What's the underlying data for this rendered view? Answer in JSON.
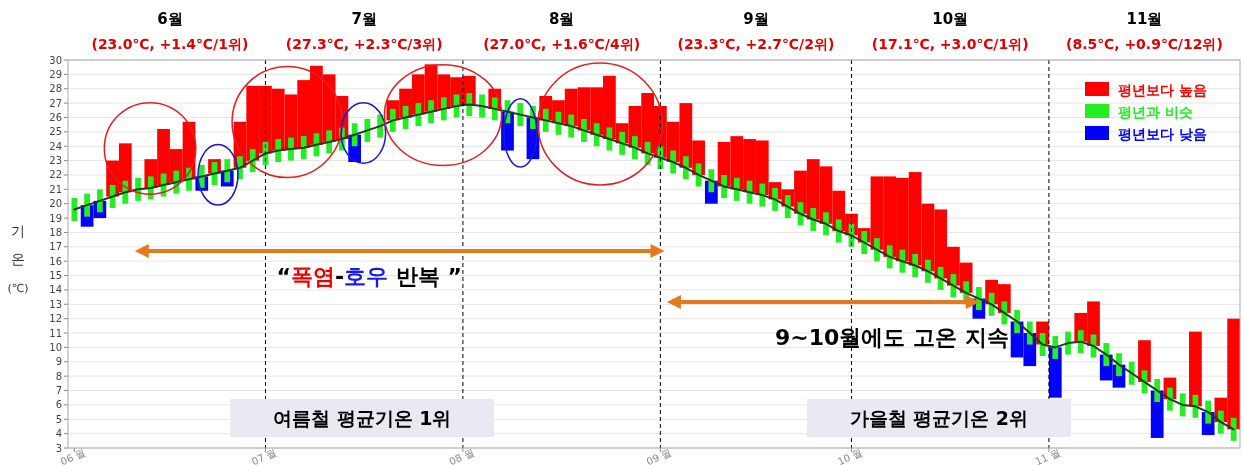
{
  "chart_data": {
    "type": "bar",
    "x": [
      "--06-01",
      "--06-03",
      "--06-05",
      "--06-07",
      "--06-09",
      "--06-11",
      "--06-13",
      "--06-15",
      "--06-17",
      "--06-19",
      "--06-21",
      "--06-23",
      "--06-25",
      "--06-27",
      "--06-29",
      "--07-01",
      "--07-03",
      "--07-05",
      "--07-07",
      "--07-09",
      "--07-11",
      "--07-13",
      "--07-15",
      "--07-17",
      "--07-19",
      "--07-21",
      "--07-23",
      "--07-25",
      "--07-27",
      "--07-29",
      "--07-31",
      "--08-02",
      "--08-04",
      "--08-06",
      "--08-08",
      "--08-10",
      "--08-12",
      "--08-14",
      "--08-16",
      "--08-18",
      "--08-20",
      "--08-22",
      "--08-24",
      "--08-26",
      "--08-28",
      "--08-30",
      "--09-01",
      "--09-03",
      "--09-05",
      "--09-07",
      "--09-09",
      "--09-11",
      "--09-13",
      "--09-15",
      "--09-17",
      "--09-19",
      "--09-21",
      "--09-23",
      "--09-25",
      "--09-27",
      "--09-29",
      "--10-01",
      "--10-03",
      "--10-05",
      "--10-07",
      "--10-09",
      "--10-11",
      "--10-13",
      "--10-15",
      "--10-17",
      "--10-19",
      "--10-21",
      "--10-23",
      "--10-25",
      "--10-27",
      "--10-29",
      "--10-31",
      "--11-02",
      "--11-04",
      "--11-06",
      "--11-08",
      "--11-10",
      "--11-12",
      "--11-14",
      "--11-16",
      "--11-18",
      "--11-20",
      "--11-22",
      "--11-24",
      "--11-26",
      "--11-28",
      "--11-30"
    ],
    "series": [
      {
        "name": "평년보다 높음",
        "color": "#ff0000",
        "base": [
          null,
          null,
          null,
          20.5,
          20.8,
          null,
          21.1,
          21.3,
          21.5,
          21.7,
          null,
          22.1,
          null,
          22.5,
          23.0,
          23.5,
          23.7,
          23.8,
          23.9,
          24.1,
          24.3,
          24.5,
          null,
          null,
          null,
          25.8,
          26.0,
          26.2,
          26.4,
          26.6,
          26.8,
          26.9,
          null,
          26.6,
          null,
          null,
          null,
          25.8,
          25.6,
          25.4,
          25.1,
          24.8,
          24.5,
          24.2,
          23.9,
          23.5,
          23.2,
          22.9,
          22.5,
          22.0,
          null,
          21.2,
          21.0,
          20.8,
          20.6,
          20.3,
          19.8,
          19.3,
          18.9,
          18.6,
          18.1,
          17.8,
          17.3,
          16.8,
          16.3,
          16.0,
          15.7,
          15.3,
          14.8,
          14.3,
          13.8,
          null,
          13.0,
          12.4,
          null,
          null,
          10.2,
          null,
          null,
          10.4,
          10.1,
          null,
          null,
          null,
          7.6,
          null,
          6.4,
          null,
          5.9,
          null,
          4.8,
          4.3
        ],
        "values": [
          null,
          null,
          null,
          2.5,
          3.4,
          null,
          2.0,
          3.9,
          2.3,
          4.0,
          null,
          1.0,
          null,
          3.2,
          5.2,
          4.7,
          4.3,
          3.8,
          4.7,
          5.5,
          4.7,
          3.0,
          null,
          null,
          null,
          1.4,
          2.0,
          2.8,
          3.3,
          2.4,
          2.0,
          2.0,
          null,
          1.4,
          null,
          null,
          null,
          1.7,
          1.6,
          2.6,
          3.0,
          3.3,
          4.4,
          1.4,
          2.9,
          4.2,
          3.6,
          2.8,
          4.5,
          2.4,
          null,
          3.1,
          3.7,
          3.7,
          3.8,
          1.2,
          1.2,
          3.0,
          4.2,
          4.0,
          2.8,
          1.5,
          1.0,
          5.1,
          5.6,
          5.8,
          6.5,
          4.7,
          4.8,
          2.7,
          2.1,
          null,
          1.7,
          2.0,
          null,
          null,
          1.6,
          null,
          null,
          2.0,
          3.1,
          null,
          null,
          null,
          2.9,
          null,
          1.5,
          null,
          5.2,
          null,
          1.7,
          7.7
        ]
      },
      {
        "name": "평년과 비슷",
        "color": "#22ee22",
        "base": [
          18.8,
          19.1,
          19.4,
          19.7,
          20.0,
          20.2,
          20.3,
          20.5,
          20.7,
          20.9,
          21.1,
          21.3,
          21.5,
          21.7,
          22.2,
          22.7,
          22.9,
          23.0,
          23.1,
          23.3,
          23.5,
          23.7,
          24.0,
          24.3,
          24.6,
          25.0,
          25.2,
          25.4,
          25.6,
          25.8,
          26.0,
          26.1,
          26.0,
          25.8,
          25.6,
          25.4,
          25.2,
          25.0,
          24.8,
          24.6,
          24.3,
          24.0,
          23.7,
          23.4,
          23.1,
          22.7,
          22.4,
          22.1,
          21.7,
          21.2,
          20.8,
          20.4,
          20.2,
          20.0,
          19.8,
          19.5,
          19.0,
          18.5,
          18.1,
          17.8,
          17.3,
          17.0,
          16.5,
          16.0,
          15.5,
          15.2,
          14.9,
          14.5,
          14.0,
          13.5,
          13.0,
          12.6,
          12.2,
          11.6,
          11.0,
          10.2,
          9.4,
          9.2,
          9.5,
          9.6,
          9.3,
          8.7,
          8.0,
          7.4,
          6.8,
          6.2,
          5.6,
          5.2,
          5.1,
          4.7,
          4.0,
          3.5
        ],
        "values": [
          1.6,
          1.6,
          1.6,
          1.6,
          1.6,
          1.6,
          1.6,
          1.6,
          1.6,
          1.6,
          1.6,
          1.6,
          1.6,
          1.6,
          1.6,
          1.6,
          1.6,
          1.6,
          1.6,
          1.6,
          1.6,
          1.6,
          1.6,
          1.6,
          1.6,
          1.6,
          1.6,
          1.6,
          1.6,
          1.6,
          1.6,
          1.6,
          1.6,
          1.6,
          1.6,
          1.6,
          1.6,
          1.6,
          1.6,
          1.6,
          1.6,
          1.6,
          1.6,
          1.6,
          1.6,
          1.6,
          1.6,
          1.6,
          1.6,
          1.6,
          1.6,
          1.6,
          1.6,
          1.6,
          1.6,
          1.6,
          1.6,
          1.6,
          1.6,
          1.6,
          1.6,
          1.6,
          1.6,
          1.6,
          1.6,
          1.6,
          1.6,
          1.6,
          1.6,
          1.6,
          1.6,
          1.6,
          1.6,
          1.6,
          1.6,
          1.6,
          1.6,
          1.6,
          1.6,
          1.6,
          1.6,
          1.6,
          1.6,
          1.6,
          1.6,
          1.6,
          1.6,
          1.6,
          1.6,
          1.6,
          1.6,
          1.6
        ]
      },
      {
        "name": "평년보다 낮음",
        "color": "#0000ff",
        "base": [
          null,
          19.9,
          20.2,
          null,
          null,
          null,
          null,
          null,
          null,
          null,
          21.9,
          null,
          22.3,
          null,
          null,
          null,
          null,
          null,
          null,
          null,
          null,
          null,
          24.8,
          null,
          null,
          null,
          null,
          null,
          null,
          null,
          null,
          null,
          null,
          null,
          26.4,
          null,
          26.0,
          null,
          null,
          null,
          null,
          null,
          null,
          null,
          null,
          null,
          null,
          null,
          null,
          null,
          21.6,
          null,
          null,
          null,
          null,
          null,
          null,
          null,
          null,
          null,
          null,
          null,
          null,
          null,
          null,
          null,
          null,
          null,
          null,
          null,
          null,
          13.4,
          null,
          null,
          11.8,
          11.0,
          null,
          10.0,
          null,
          null,
          null,
          9.5,
          8.8,
          null,
          null,
          7.0,
          null,
          null,
          null,
          5.5,
          null,
          null
        ],
        "values": [
          null,
          -1.5,
          -1.2,
          null,
          null,
          null,
          null,
          null,
          null,
          null,
          -1.0,
          null,
          -1.1,
          null,
          null,
          null,
          null,
          null,
          null,
          null,
          null,
          null,
          -1.9,
          null,
          null,
          null,
          null,
          null,
          null,
          null,
          null,
          null,
          null,
          null,
          -2.7,
          null,
          -2.9,
          null,
          null,
          null,
          null,
          null,
          null,
          null,
          null,
          null,
          null,
          null,
          null,
          null,
          -1.6,
          null,
          null,
          null,
          null,
          null,
          null,
          null,
          null,
          null,
          null,
          null,
          null,
          null,
          null,
          null,
          null,
          null,
          null,
          null,
          null,
          -1.4,
          null,
          null,
          -2.5,
          -2.3,
          null,
          -3.5,
          null,
          null,
          null,
          -1.8,
          -1.6,
          null,
          null,
          -3.3,
          null,
          null,
          null,
          -1.6,
          null,
          null
        ]
      },
      {
        "type": "line",
        "color": "#1e3d1e",
        "values": [
          19.6,
          19.9,
          20.2,
          20.5,
          20.8,
          21.0,
          21.1,
          21.3,
          21.5,
          21.7,
          21.9,
          22.1,
          22.3,
          22.5,
          23.0,
          23.5,
          23.7,
          23.8,
          23.9,
          24.1,
          24.3,
          24.5,
          24.8,
          25.1,
          25.4,
          25.8,
          26.0,
          26.2,
          26.4,
          26.6,
          26.8,
          26.9,
          26.8,
          26.6,
          26.4,
          26.2,
          26.0,
          25.8,
          25.6,
          25.4,
          25.1,
          24.8,
          24.5,
          24.2,
          23.9,
          23.5,
          23.2,
          22.9,
          22.5,
          22.0,
          21.6,
          21.2,
          21.0,
          20.8,
          20.6,
          20.3,
          19.8,
          19.3,
          18.9,
          18.6,
          18.1,
          17.8,
          17.3,
          16.8,
          16.3,
          16.0,
          15.7,
          15.3,
          14.8,
          14.3,
          13.8,
          13.4,
          13.0,
          12.4,
          11.8,
          11.0,
          10.2,
          10.0,
          10.3,
          10.4,
          10.1,
          9.5,
          8.8,
          8.2,
          7.6,
          7.0,
          6.4,
          6.0,
          5.9,
          5.5,
          4.8,
          4.3
        ]
      }
    ],
    "xlim": [
      "--05-31",
      "--12-01"
    ],
    "xticks": [
      {
        "value": "--06-01",
        "label": "06 월"
      },
      {
        "value": "--07-01",
        "label": "07 월"
      },
      {
        "value": "--08-01",
        "label": "08 월"
      },
      {
        "value": "--09-01",
        "label": "09 월"
      },
      {
        "value": "--10-01",
        "label": "10 월"
      },
      {
        "value": "--11-01",
        "label": "11 월"
      }
    ],
    "ylim": [
      3,
      30
    ],
    "yticks": [
      3,
      4,
      5,
      6,
      7,
      8,
      9,
      10,
      11,
      12,
      13,
      14,
      15,
      16,
      17,
      18,
      19,
      20,
      21,
      22,
      23,
      24,
      25,
      26,
      27,
      28,
      29,
      30
    ],
    "ylabel": "기온(℃)",
    "grid": "y",
    "legend": "top right",
    "ref_lines": [
      {
        "axis": "x",
        "value": "--07-01",
        "line_style": "dashed",
        "color": "#000000"
      },
      {
        "axis": "x",
        "value": "--08-01",
        "line_style": "dashed",
        "color": "#000000"
      },
      {
        "axis": "x",
        "value": "--09-01",
        "line_style": "dashed",
        "color": "#000000"
      },
      {
        "axis": "x",
        "value": "--10-01",
        "line_style": "dashed",
        "color": "#000000"
      },
      {
        "axis": "x",
        "value": "--11-01",
        "line_style": "dashed",
        "color": "#000000"
      }
    ],
    "annotations": [
      "6월",
      "(23.0℃, +1.4℃/1위)",
      "7월",
      "(27.3℃, +2.3℃/3위)",
      "8월",
      "(27.0℃, +1.6℃/4위)",
      "9월",
      "(23.3℃, +2.7℃/2위)",
      "10월",
      "(17.1℃, +3.0℃/1위)",
      "11월",
      "(8.5℃, +0.9℃/12위)",
      "“폭염-호우 반복 ”",
      "9~10월에도 고온 지속",
      "여름철 평균기온 1위",
      "가을철 평균기온 2위"
    ]
  }
}
